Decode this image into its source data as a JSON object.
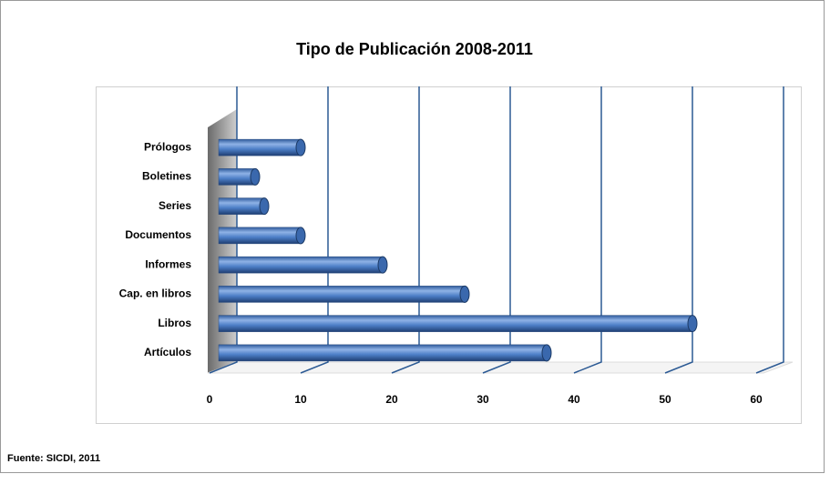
{
  "chart_data": {
    "type": "bar",
    "orientation": "horizontal",
    "title": "Tipo de Publicación 2008-2011",
    "categories": [
      "Prólogos",
      "Boletines",
      "Series",
      "Documentos",
      "Informes",
      "Cap. en libros",
      "Libros",
      "Artículos"
    ],
    "values": [
      9,
      4,
      5,
      9,
      18,
      27,
      52,
      36
    ],
    "color": "#3f6fb5",
    "xlim": [
      0,
      60
    ],
    "xticks": [
      0,
      10,
      20,
      30,
      40,
      50,
      60
    ],
    "grid": true,
    "source": "Fuente: SICDI, 2011"
  }
}
